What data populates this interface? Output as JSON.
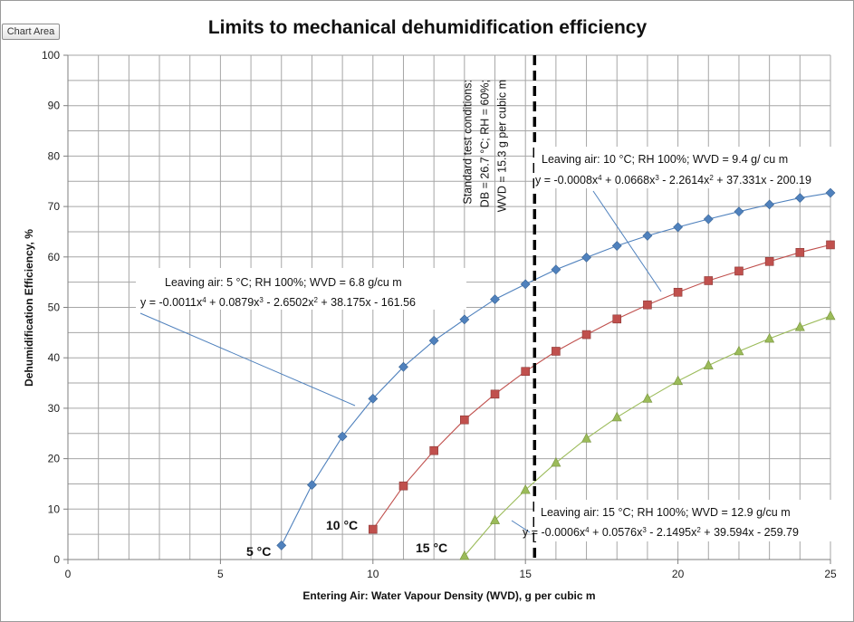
{
  "ui": {
    "chart_area_label": "Chart Area"
  },
  "chart_data": {
    "type": "scatter",
    "title": "Limits to mechanical dehumidification efficiency",
    "xlabel": "Entering Air: Water Vapour Density (WVD), g per cubic m",
    "ylabel": "Dehumidification Efficiency, %",
    "xlim": [
      0,
      25
    ],
    "ylim": [
      0,
      100
    ],
    "x_major_step": 5,
    "x_minor_step": 1,
    "y_major_step": 10,
    "y_minor_step": 5,
    "grid": true,
    "x_tick_labels": [
      "0",
      "5",
      "10",
      "15",
      "20",
      "25"
    ],
    "y_tick_labels": [
      "0",
      "10",
      "20",
      "30",
      "40",
      "50",
      "60",
      "70",
      "80",
      "90",
      "100"
    ],
    "series": [
      {
        "name": "5 °C",
        "label": "5 °C",
        "color": "#4f81bd",
        "marker": "diamond",
        "x": [
          7,
          8,
          9,
          10,
          11,
          12,
          13,
          14,
          15,
          16,
          17,
          18,
          19,
          20,
          21,
          22,
          23,
          24,
          25
        ],
        "y": [
          2.8,
          14.8,
          24.4,
          31.9,
          38.2,
          43.4,
          47.6,
          51.6,
          54.6,
          57.5,
          59.9,
          62.2,
          64.2,
          65.9,
          67.5,
          69.0,
          70.4,
          71.7,
          72.7
        ],
        "annotation": {
          "line1": "Leaving air: 5 °C; RH 100%; WVD = 6.8 g/cu m",
          "eq_a": "y = -0.0011x",
          "eq_b": " + 0.0879x",
          "eq_c": " - 2.6502x",
          "eq_d": " + 38.175x  - 161.56",
          "sup1": "4",
          "sup2": "3",
          "sup3": "2"
        }
      },
      {
        "name": "10 °C",
        "label": "10 °C",
        "color": "#c0504d",
        "marker": "square",
        "x": [
          10,
          11,
          12,
          13,
          14,
          15,
          16,
          17,
          18,
          19,
          20,
          21,
          22,
          23,
          24,
          25
        ],
        "y": [
          6.0,
          14.6,
          21.6,
          27.7,
          32.8,
          37.3,
          41.3,
          44.6,
          47.7,
          50.5,
          53.0,
          55.3,
          57.2,
          59.1,
          60.9,
          62.4
        ],
        "annotation": {
          "line1": "Leaving air: 10 °C; RH 100%; WVD = 9.4 g/ cu m",
          "eq_a": "y = -0.0008x",
          "eq_b": " + 0.0668x",
          "eq_c": " - 2.2614x",
          "eq_d": " + 37.331x  - 200.19",
          "sup1": "4",
          "sup2": "3",
          "sup3": "2"
        }
      },
      {
        "name": "15 °C",
        "label": "15 °C",
        "color": "#9bbb59",
        "marker": "triangle",
        "x": [
          13,
          14,
          15,
          16,
          17,
          18,
          19,
          20,
          21,
          22,
          23,
          24,
          25
        ],
        "y": [
          0.7,
          7.8,
          13.8,
          19.2,
          24.0,
          28.2,
          31.9,
          35.4,
          38.5,
          41.3,
          43.8,
          46.1,
          48.3
        ],
        "annotation": {
          "line1": "Leaving air: 15 °C; RH 100%; WVD = 12.9 g/cu m",
          "eq_a": "y = -0.0006x",
          "eq_b": " + 0.0576x",
          "eq_c": " - 2.1495x",
          "eq_d": " + 39.594x  - 259.79",
          "sup1": "4",
          "sup2": "3",
          "sup3": "2"
        }
      }
    ],
    "reference_line": {
      "x": 15.3,
      "style": "dashed",
      "color": "#000000",
      "label_lines": [
        "Standard  test conditions:",
        "DB = 26.7 °C; RH = 60%;",
        "WVD = 15.3 g per cubic m"
      ]
    }
  }
}
